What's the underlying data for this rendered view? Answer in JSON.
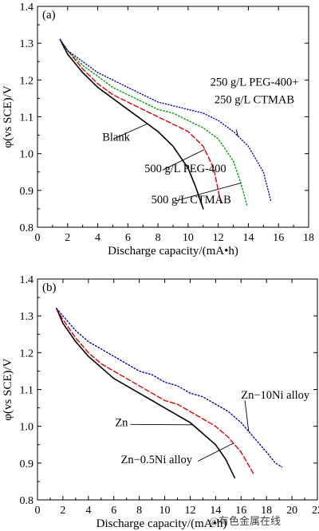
{
  "watermark": "@有色金属在线",
  "chart_data": [
    {
      "type": "line",
      "panel_label": "(a)",
      "xlabel": "Discharge capacity/(mA•h)",
      "ylabel": "φ(vs SCE)/V",
      "xlim": [
        0,
        18
      ],
      "ylim": [
        0.8,
        1.4
      ],
      "xticks": [
        0,
        2,
        4,
        6,
        8,
        10,
        12,
        14,
        16,
        18
      ],
      "yticks": [
        0.8,
        0.9,
        1.0,
        1.1,
        1.2,
        1.3,
        1.4
      ],
      "series": [
        {
          "name": "Blank",
          "color": "#000000",
          "dash": "solid",
          "x": [
            1.5,
            2,
            3,
            4,
            5,
            6,
            7,
            8,
            9,
            10,
            10.5,
            11
          ],
          "y": [
            1.31,
            1.27,
            1.22,
            1.18,
            1.15,
            1.12,
            1.09,
            1.06,
            1.02,
            0.96,
            0.91,
            0.85
          ]
        },
        {
          "name": "500 g/L PEG-400",
          "color": "#e00000",
          "dash": "dashed",
          "x": [
            1.5,
            2,
            3,
            4,
            5,
            6,
            7,
            8,
            9,
            10,
            11,
            11.7,
            12.2
          ],
          "y": [
            1.31,
            1.28,
            1.23,
            1.19,
            1.16,
            1.14,
            1.12,
            1.1,
            1.08,
            1.06,
            1.02,
            0.96,
            0.86
          ]
        },
        {
          "name": "500 g/L CTMAB",
          "color": "#00a000",
          "dash": "dotted",
          "x": [
            1.5,
            2,
            3,
            4,
            5,
            6,
            7,
            8,
            9,
            10,
            11,
            12,
            13,
            13.5,
            13.9
          ],
          "y": [
            1.31,
            1.28,
            1.24,
            1.21,
            1.18,
            1.16,
            1.14,
            1.12,
            1.11,
            1.09,
            1.07,
            1.04,
            0.98,
            0.92,
            0.86
          ]
        },
        {
          "name": "250 g/L PEG-400+ 250 g/L CTMAB",
          "color": "#0000cc",
          "dash": "dashdot",
          "x": [
            1.5,
            2,
            3,
            4,
            5,
            6,
            7,
            8,
            9,
            10,
            11,
            12,
            13,
            14,
            15,
            15.5
          ],
          "y": [
            1.31,
            1.28,
            1.25,
            1.22,
            1.2,
            1.18,
            1.16,
            1.14,
            1.13,
            1.12,
            1.11,
            1.09,
            1.06,
            1.02,
            0.95,
            0.87
          ]
        }
      ],
      "annotations": [
        {
          "lines": [
            "250 g/L PEG-400+",
            "250 g/L CTMAB"
          ],
          "series": 3,
          "at_x": 13.3,
          "text_x": 14.4,
          "text_y": 1.185,
          "leader_from": [
            13.2,
            1.065
          ]
        },
        {
          "lines": [
            "Blank"
          ],
          "series": 0,
          "at_x": 7.3,
          "text_x": 4.3,
          "text_y": 1.035,
          "leader_from": [
            5.05,
            1.04
          ]
        },
        {
          "lines": [
            "500 g/L PEG-400"
          ],
          "series": 1,
          "at_x": 11.1,
          "text_x": 7.1,
          "text_y": 0.95,
          "leader_from": [
            8.3,
            0.955
          ]
        },
        {
          "lines": [
            "500 g/L CTMAB"
          ],
          "series": 2,
          "at_x": 13.5,
          "text_x": 7.55,
          "text_y": 0.865,
          "leader_from": [
            9.2,
            0.872
          ]
        }
      ]
    },
    {
      "type": "line",
      "panel_label": "(b)",
      "xlabel": "Discharge capacity/(mA•h)",
      "ylabel": "φ(vs SCE)/V",
      "xlim": [
        0,
        22
      ],
      "ylim": [
        0.8,
        1.4
      ],
      "xticks": [
        0,
        2,
        4,
        6,
        8,
        10,
        12,
        14,
        16,
        18,
        20,
        22
      ],
      "yticks": [
        0.8,
        0.9,
        1.0,
        1.1,
        1.2,
        1.3,
        1.4
      ],
      "series": [
        {
          "name": "Zn",
          "color": "#000000",
          "dash": "solid",
          "x": [
            1.5,
            2,
            3,
            4,
            5,
            6,
            7,
            8,
            9,
            10,
            11,
            12,
            13,
            14,
            14.8,
            15.5
          ],
          "y": [
            1.32,
            1.28,
            1.23,
            1.19,
            1.16,
            1.13,
            1.11,
            1.09,
            1.07,
            1.05,
            1.03,
            1.01,
            0.98,
            0.95,
            0.91,
            0.86
          ]
        },
        {
          "name": "Zn−0.5Ni alloy",
          "color": "#e00000",
          "dash": "dashed",
          "x": [
            1.5,
            2,
            3,
            4,
            5,
            6,
            7,
            8,
            9,
            10,
            11,
            12,
            13,
            14,
            15,
            16,
            16.5,
            17
          ],
          "y": [
            1.32,
            1.29,
            1.24,
            1.2,
            1.17,
            1.15,
            1.13,
            1.11,
            1.09,
            1.07,
            1.06,
            1.04,
            1.02,
            1.0,
            0.97,
            0.93,
            0.9,
            0.87
          ]
        },
        {
          "name": "Zn−10Ni alloy",
          "color": "#0000cc",
          "dash": "dotted",
          "x": [
            1.5,
            2,
            3,
            4,
            5,
            6,
            7,
            8,
            9,
            10,
            11,
            12,
            13,
            14,
            15,
            16,
            17,
            18,
            18.7,
            19.2
          ],
          "y": [
            1.32,
            1.3,
            1.26,
            1.23,
            1.21,
            1.19,
            1.17,
            1.15,
            1.14,
            1.12,
            1.11,
            1.09,
            1.08,
            1.06,
            1.04,
            1.01,
            0.97,
            0.93,
            0.9,
            0.89
          ]
        }
      ],
      "annotations": [
        {
          "lines": [
            "Zn−10Ni alloy"
          ],
          "series": 2,
          "at_x": 16.6,
          "text_x": 16.0,
          "text_y": 1.075,
          "leader_from": [
            16.3,
            1.07
          ]
        },
        {
          "lines": [
            "Zn"
          ],
          "series": 0,
          "at_x": 12.2,
          "text_x": 6.1,
          "text_y": 1.0,
          "leader_from": [
            7.3,
            1.005
          ]
        },
        {
          "lines": [
            "Zn−0.5Ni alloy"
          ],
          "series": 1,
          "at_x": 15.4,
          "text_x": 6.55,
          "text_y": 0.9,
          "leader_from": [
            12.6,
            0.905
          ]
        }
      ]
    }
  ]
}
